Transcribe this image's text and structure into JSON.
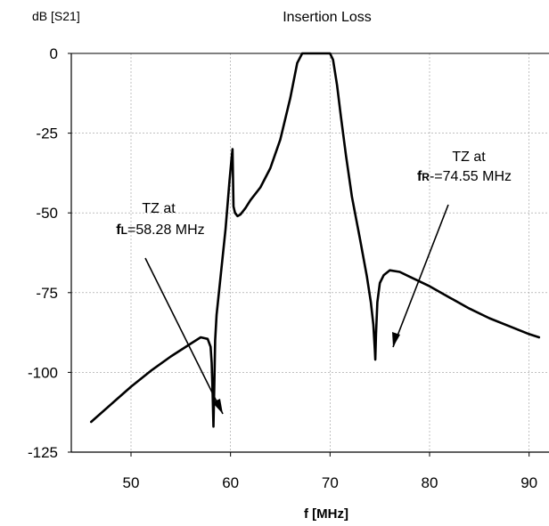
{
  "chart_data": {
    "type": "line",
    "title": "Insertion Loss",
    "ylabel": "dB [S21]",
    "xlabel": "f [MHz]",
    "xlim": [
      44,
      92
    ],
    "ylim": [
      -125,
      0
    ],
    "xticks": [
      "50",
      "60",
      "70",
      "80",
      "90"
    ],
    "yticks": [
      "0",
      "-25",
      "-50",
      "-75",
      "-100",
      "-125"
    ],
    "grid": true,
    "series": [
      {
        "x": [
          46,
          48,
          50,
          52,
          54,
          56,
          57,
          57.7,
          58.0,
          58.1,
          58.2,
          58.28,
          58.36,
          58.45,
          58.6,
          59,
          59.5,
          59.9,
          60.1,
          60.2,
          60.3,
          60.45,
          60.7,
          61,
          61.5,
          62,
          63,
          64,
          65,
          66,
          66.7,
          67.2,
          67.6,
          68,
          69,
          70,
          70.3,
          70.7,
          71.1,
          71.6,
          72.2,
          73,
          73.7,
          74.1,
          74.35,
          74.5,
          74.55,
          74.62,
          74.75,
          75,
          75.4,
          76,
          77,
          78,
          80,
          82,
          84,
          86,
          88,
          90,
          91
        ],
        "y": [
          -115.5,
          -110,
          -104.5,
          -99.5,
          -95,
          -91,
          -89,
          -89.5,
          -92,
          -97,
          -107,
          -117,
          -105,
          -90,
          -82,
          -70,
          -55,
          -40,
          -33,
          -30,
          -48,
          -50,
          -51,
          -50.5,
          -48.5,
          -46,
          -42,
          -36,
          -27,
          -14,
          -3,
          0,
          0,
          0,
          0,
          0,
          -2,
          -10,
          -20,
          -32,
          -45,
          -58,
          -70,
          -78,
          -85,
          -93,
          -96,
          -88,
          -78,
          -72,
          -69.5,
          -68,
          -68.5,
          -70,
          -73,
          -76.5,
          -80,
          -83,
          -85.5,
          -88,
          -89
        ]
      }
    ],
    "annotations": [
      {
        "line1": "TZ at",
        "prefix": "f",
        "sub": "L",
        "value": "=58.28 MHz"
      },
      {
        "line1": "TZ  at",
        "prefix": "f",
        "sub": "R",
        "value": "-=74.55 MHz"
      }
    ]
  }
}
